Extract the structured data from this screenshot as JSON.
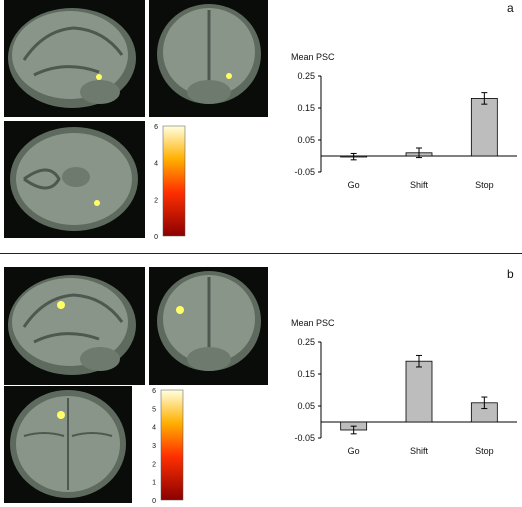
{
  "panels": [
    {
      "letter": "a",
      "colorbar": {
        "max": 6,
        "ticks": [
          "6",
          "4",
          "2",
          "0"
        ]
      },
      "chart": {
        "ylabel": "Mean PSC",
        "ticks": [
          "0.25",
          "0.15",
          "0.05",
          "-0.05"
        ]
      }
    },
    {
      "letter": "b",
      "colorbar": {
        "max": 6,
        "ticks": [
          "6",
          "5",
          "4",
          "3",
          "2",
          "1",
          "0"
        ]
      },
      "chart": {
        "ylabel": "Mean PSC",
        "ticks": [
          "0.25",
          "0.15",
          "0.05",
          "-0.05"
        ]
      }
    }
  ],
  "chart_data": [
    {
      "type": "bar",
      "ylabel": "Mean PSC",
      "categories": [
        "Go",
        "Shift",
        "Stop"
      ],
      "values": [
        -0.002,
        0.01,
        0.18
      ],
      "errors": [
        0.01,
        0.015,
        0.018
      ],
      "ylim": [
        -0.05,
        0.25
      ],
      "yticks": [
        -0.05,
        0.05,
        0.15,
        0.25
      ],
      "bar_color": "#bdbdbd"
    },
    {
      "type": "bar",
      "ylabel": "Mean PSC",
      "categories": [
        "Go",
        "Shift",
        "Stop"
      ],
      "values": [
        -0.025,
        0.19,
        0.06
      ],
      "errors": [
        0.012,
        0.018,
        0.018
      ],
      "ylim": [
        -0.05,
        0.25
      ],
      "yticks": [
        -0.05,
        0.05,
        0.15,
        0.25
      ],
      "bar_color": "#bdbdbd"
    }
  ],
  "colors": {
    "brain_bg": "#0a0c0a",
    "tissue": "#8a958a",
    "activation": "#ffff66"
  }
}
